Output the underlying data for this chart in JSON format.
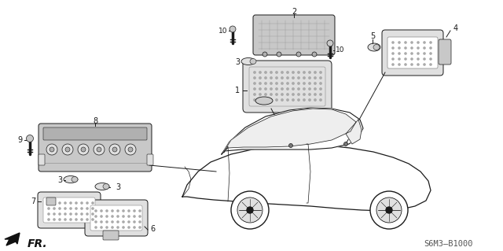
{
  "background_color": "#ffffff",
  "diagram_code": "S6M3–B1000",
  "arrow_fr_text": "FR.",
  "figsize": [
    6.4,
    3.19
  ],
  "dpi": 100,
  "ec": "#1a1a1a",
  "lw": 0.7
}
